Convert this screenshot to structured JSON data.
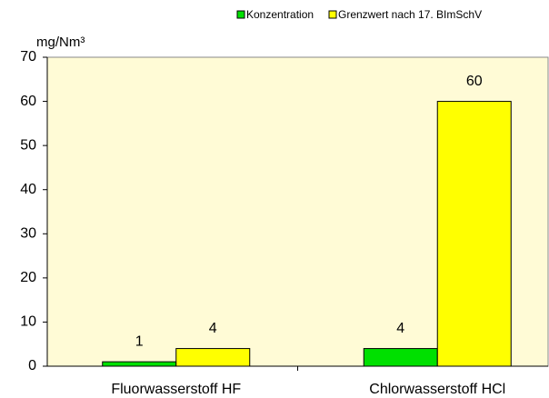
{
  "chart_data": {
    "type": "bar",
    "y_label": "mg/Nm³",
    "categories": [
      "Fluorwasserstoff HF",
      "Chlorwasserstoff HCl"
    ],
    "series": [
      {
        "name": "Konzentration",
        "color": "#00e000",
        "values": [
          1,
          4
        ]
      },
      {
        "name": "Grenzwert nach 17. BImSchV",
        "color": "#ffff00",
        "values": [
          4,
          60
        ]
      }
    ],
    "ylim": [
      0,
      70
    ],
    "yticks": [
      0,
      10,
      20,
      30,
      40,
      50,
      60,
      70
    ],
    "legend": "top-right",
    "plot_background": "#fffbd6"
  }
}
